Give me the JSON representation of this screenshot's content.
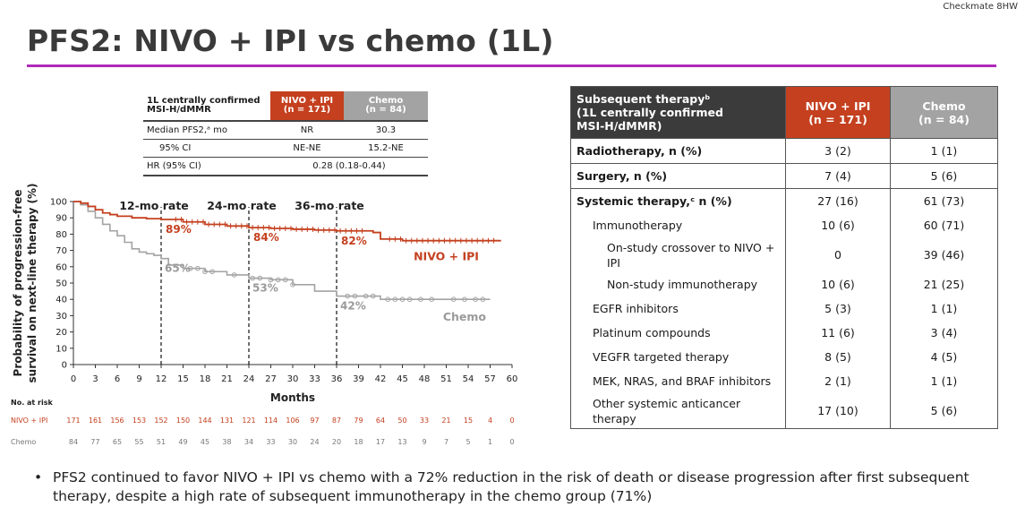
{
  "header": {
    "trial": "Checkmate 8HW",
    "title": "PFS2: NIVO + IPI vs chemo (1L)",
    "rule_color": "#b02ab8"
  },
  "stats_table": {
    "population": "1L centrally confirmed MSI-H/dMMR",
    "nivo_header": "NIVO + IPI\n(n = 171)",
    "chemo_header": "Chemo\n(n = 84)",
    "rows": [
      {
        "label": "Median PFS2,ᵃ mo",
        "nivo": "NR",
        "chemo": "30.3"
      },
      {
        "label": "95% CI",
        "nivo": "NE-NE",
        "chemo": "15.2-NE"
      }
    ],
    "hr_label": "HR (95% CI)",
    "hr_value": "0.28 (0.18-0.44)"
  },
  "chart_data": {
    "type": "line",
    "ylabel": "Probability of progression-free\nsurvival on next-line therapy (%)",
    "xlabel": "Months",
    "xlim": [
      0,
      60
    ],
    "ylim": [
      0,
      100
    ],
    "xticks": [
      0,
      3,
      6,
      9,
      12,
      15,
      18,
      21,
      24,
      27,
      30,
      33,
      36,
      39,
      42,
      45,
      48,
      51,
      54,
      57,
      60
    ],
    "yticks": [
      0,
      10,
      20,
      30,
      40,
      50,
      60,
      70,
      80,
      90,
      100
    ],
    "landmarks": [
      {
        "x": 12,
        "label": "12-mo rate",
        "nivo": "89%",
        "chemo": "65%"
      },
      {
        "x": 24,
        "label": "24-mo rate",
        "nivo": "84%",
        "chemo": "53%"
      },
      {
        "x": 36,
        "label": "36-mo rate",
        "nivo": "82%",
        "chemo": "42%"
      }
    ],
    "series": [
      {
        "name": "NIVO + IPI",
        "color": "#c4401f",
        "x": [
          0,
          1,
          2,
          3,
          4,
          5,
          6,
          8,
          10,
          12,
          15,
          18,
          21,
          24,
          27,
          30,
          33,
          36,
          39,
          41,
          42,
          45,
          48,
          51,
          54,
          57,
          58.5
        ],
        "y": [
          100,
          99,
          97,
          95,
          93,
          92,
          91,
          90,
          89.5,
          89,
          87.5,
          86,
          85,
          84,
          83.5,
          83,
          82.5,
          82,
          82,
          81,
          77,
          76,
          76,
          76,
          76,
          76,
          76
        ]
      },
      {
        "name": "Chemo",
        "color": "#a3a3a3",
        "x": [
          0,
          1,
          2,
          3,
          4,
          5,
          6,
          7,
          8,
          9,
          10,
          11,
          12,
          13,
          15,
          18,
          21,
          24,
          27,
          30,
          33,
          36,
          39,
          42,
          45,
          48,
          51,
          54,
          57
        ],
        "y": [
          100,
          98,
          94,
          90,
          86,
          82,
          79,
          75,
          71,
          69,
          68,
          67,
          65,
          61,
          59,
          57,
          55,
          53,
          52,
          49,
          45,
          42,
          42,
          40,
          40,
          40,
          40,
          40,
          40
        ]
      }
    ],
    "risk_table": {
      "header": "No. at risk",
      "rows": [
        {
          "name": "NIVO + IPI",
          "values": [
            171,
            161,
            156,
            153,
            152,
            150,
            144,
            131,
            121,
            114,
            106,
            97,
            87,
            79,
            64,
            50,
            33,
            21,
            15,
            4,
            0
          ]
        },
        {
          "name": "Chemo",
          "values": [
            84,
            77,
            65,
            55,
            51,
            49,
            45,
            38,
            34,
            33,
            30,
            24,
            20,
            18,
            17,
            13,
            9,
            7,
            5,
            1,
            0
          ]
        }
      ]
    }
  },
  "subsequent_table": {
    "header_label": "Subsequent therapyᵇ\n(1L centrally confirmed\nMSI-H/dMMR)",
    "nivo_header": "NIVO + IPI\n(n = 171)",
    "chemo_header": "Chemo\n(n = 84)",
    "rows": [
      {
        "label": "Radiotherapy, n (%)",
        "nivo": "3 (2)",
        "chemo": "1 (1)"
      },
      {
        "label": "Surgery, n (%)",
        "nivo": "7 (4)",
        "chemo": "5 (6)"
      },
      {
        "label": "Systemic therapy,ᶜ n (%)",
        "nivo": "27 (16)",
        "chemo": "61 (73)"
      },
      {
        "label": "Immunotherapy",
        "nivo": "10 (6)",
        "chemo": "60 (71)"
      },
      {
        "label": "On-study crossover to NIVO + IPI",
        "nivo": "0",
        "chemo": "39 (46)"
      },
      {
        "label": "Non-study immunotherapy",
        "nivo": "10 (6)",
        "chemo": "21 (25)"
      },
      {
        "label": "EGFR inhibitors",
        "nivo": "5 (3)",
        "chemo": "1 (1)"
      },
      {
        "label": "Platinum compounds",
        "nivo": "11 (6)",
        "chemo": "3 (4)"
      },
      {
        "label": "VEGFR targeted therapy",
        "nivo": "8 (5)",
        "chemo": "4 (5)"
      },
      {
        "label": "MEK, NRAS, and BRAF inhibitors",
        "nivo": "2 (1)",
        "chemo": "1 (1)"
      },
      {
        "label": "Other systemic anticancer therapy",
        "nivo": "17 (10)",
        "chemo": "5 (6)"
      }
    ]
  },
  "bullet": "PFS2 continued to favor NIVO + IPI vs chemo with a 72% reduction in the risk of death or disease progression after first subsequent therapy, despite a high rate of subsequent immunotherapy in the chemo group (71%)"
}
